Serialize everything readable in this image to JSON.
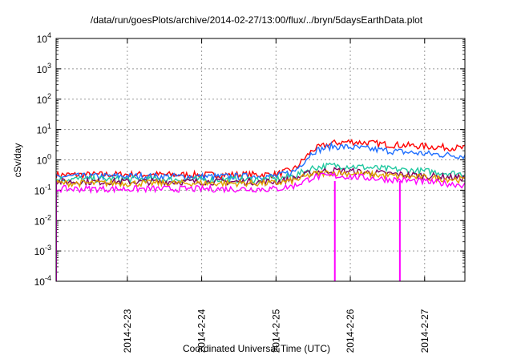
{
  "chart_data": {
    "type": "line",
    "title": "/data/run/goesPlots/archive/2014-02-27/13:00/flux/../bryn/5daysEarthData.plot",
    "xlabel": "Coordinated Universal Time (UTC)",
    "ylabel": "cSv/day",
    "yscale": "log",
    "ylim": [
      0.0001,
      10000
    ],
    "yticks": [
      {
        "value": 0.0001,
        "base": "10",
        "exp": "-4"
      },
      {
        "value": 0.001,
        "base": "10",
        "exp": "-3"
      },
      {
        "value": 0.01,
        "base": "10",
        "exp": "-2"
      },
      {
        "value": 0.1,
        "base": "10",
        "exp": "-1"
      },
      {
        "value": 1,
        "base": "10",
        "exp": "0"
      },
      {
        "value": 10,
        "base": "10",
        "exp": "1"
      },
      {
        "value": 100,
        "base": "10",
        "exp": "2"
      },
      {
        "value": 1000,
        "base": "10",
        "exp": "3"
      },
      {
        "value": 10000,
        "base": "10",
        "exp": "4"
      }
    ],
    "xlim": [
      "2014-02-22T01:00",
      "2014-02-27T13:00"
    ],
    "xticks": [
      "2014-2-23",
      "2014-2-24",
      "2014-2-25",
      "2014-2-26",
      "2014-2-27"
    ],
    "grid": true,
    "x": [
      "2014-02-22T01:00",
      "2014-02-23T00:00",
      "2014-02-24T00:00",
      "2014-02-25T00:00",
      "2014-02-25T06:00",
      "2014-02-25T12:00",
      "2014-02-25T18:00",
      "2014-02-26T00:00",
      "2014-02-26T12:00",
      "2014-02-27T00:00",
      "2014-02-27T13:00"
    ],
    "series": [
      {
        "color": "#ff0000",
        "values": [
          0.32,
          0.33,
          0.32,
          0.33,
          0.5,
          2.2,
          3.5,
          4.0,
          3.2,
          2.8,
          2.4
        ]
      },
      {
        "color": "#1f6fff",
        "values": [
          0.28,
          0.29,
          0.28,
          0.29,
          0.42,
          1.9,
          2.8,
          2.6,
          2.0,
          1.6,
          1.35
        ]
      },
      {
        "color": "#20c8a0",
        "values": [
          0.23,
          0.23,
          0.22,
          0.23,
          0.3,
          0.55,
          0.65,
          0.62,
          0.5,
          0.42,
          0.34
        ]
      },
      {
        "color": "#800060",
        "values": [
          0.19,
          0.19,
          0.19,
          0.19,
          0.24,
          0.4,
          0.45,
          0.42,
          0.35,
          0.3,
          0.25
        ]
      },
      {
        "color": "#e0a000",
        "values": [
          0.17,
          0.17,
          0.17,
          0.17,
          0.21,
          0.34,
          0.38,
          0.36,
          0.3,
          0.26,
          0.22
        ]
      },
      {
        "color": "#ff00ff",
        "values": [
          0.11,
          0.11,
          0.11,
          0.11,
          0.14,
          0.27,
          0.3,
          0.28,
          0.23,
          0.19,
          0.15
        ]
      }
    ],
    "dropouts": [
      {
        "x": "2014-02-22T01:00",
        "color": "#ff00ff",
        "value": 0.0001
      },
      {
        "x": "2014-02-25T19:00",
        "color": "#ff00ff",
        "value": 0.0001
      },
      {
        "x": "2014-02-26T16:00",
        "color": "#ff00ff",
        "value": 0.0001
      }
    ]
  }
}
